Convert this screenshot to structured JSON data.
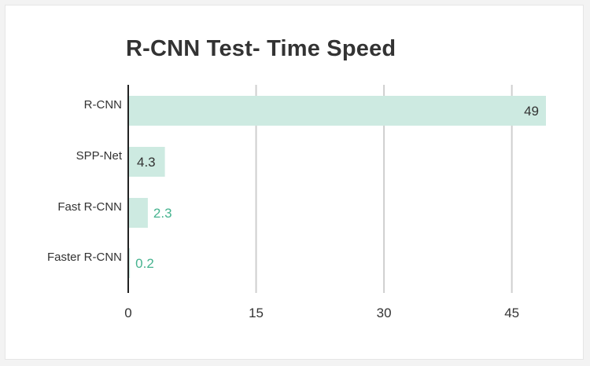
{
  "chart_data": {
    "type": "bar",
    "orientation": "horizontal",
    "title": "R-CNN Test- Time Speed",
    "categories": [
      "R-CNN",
      "SPP-Net",
      "Fast R-CNN",
      "Faster R-CNN"
    ],
    "values": [
      49,
      4.3,
      2.3,
      0.2
    ],
    "value_labels": [
      "49",
      "4.3",
      "2.3",
      "0.2"
    ],
    "xlim": [
      0,
      49
    ],
    "xticks": [
      0,
      15,
      30,
      45
    ],
    "xtick_labels": [
      "0",
      "15",
      "30",
      "45"
    ],
    "xlabel": "",
    "ylabel": "",
    "grid": true,
    "legend": false,
    "colors": {
      "bar": "#cdeae1",
      "label_inside": "#333333",
      "label_outside": "#46b38f",
      "grid": "#cfcfcf",
      "axis": "#222222"
    }
  }
}
